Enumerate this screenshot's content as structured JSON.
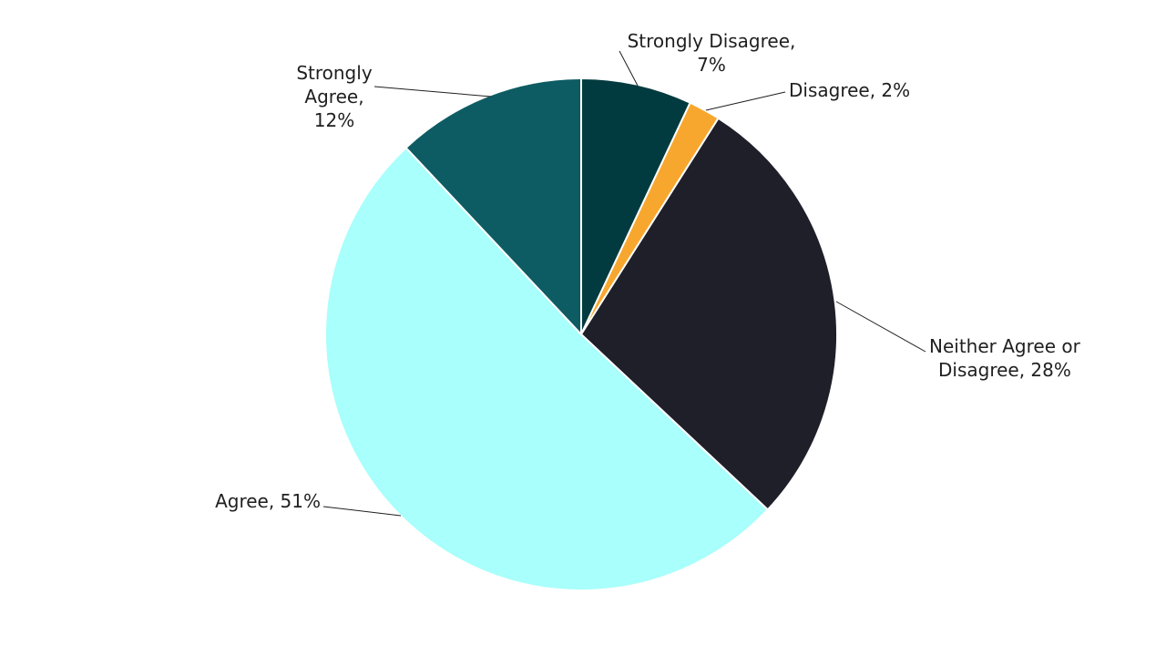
{
  "chart_data": {
    "type": "pie",
    "slices": [
      {
        "name": "Strongly Disagree",
        "value": 7,
        "color": "#023B3F",
        "label_lines": [
          "Strongly Disagree,",
          "7%"
        ]
      },
      {
        "name": "Disagree",
        "value": 2,
        "color": "#F8A72E",
        "label_lines": [
          "Disagree, 2%"
        ]
      },
      {
        "name": "Neither Agree or Disagree",
        "value": 28,
        "color": "#1E1F29",
        "label_lines": [
          "Neither Agree or",
          "Disagree, 28%"
        ]
      },
      {
        "name": "Agree",
        "value": 51,
        "color": "#A8FFFB",
        "label_lines": [
          "Agree, 51%"
        ]
      },
      {
        "name": "Strongly Agree",
        "value": 12,
        "color": "#0E5C63",
        "label_lines": [
          "Strongly",
          "Agree,",
          "12%"
        ]
      }
    ],
    "start_angle": "top",
    "direction": "clockwise"
  }
}
